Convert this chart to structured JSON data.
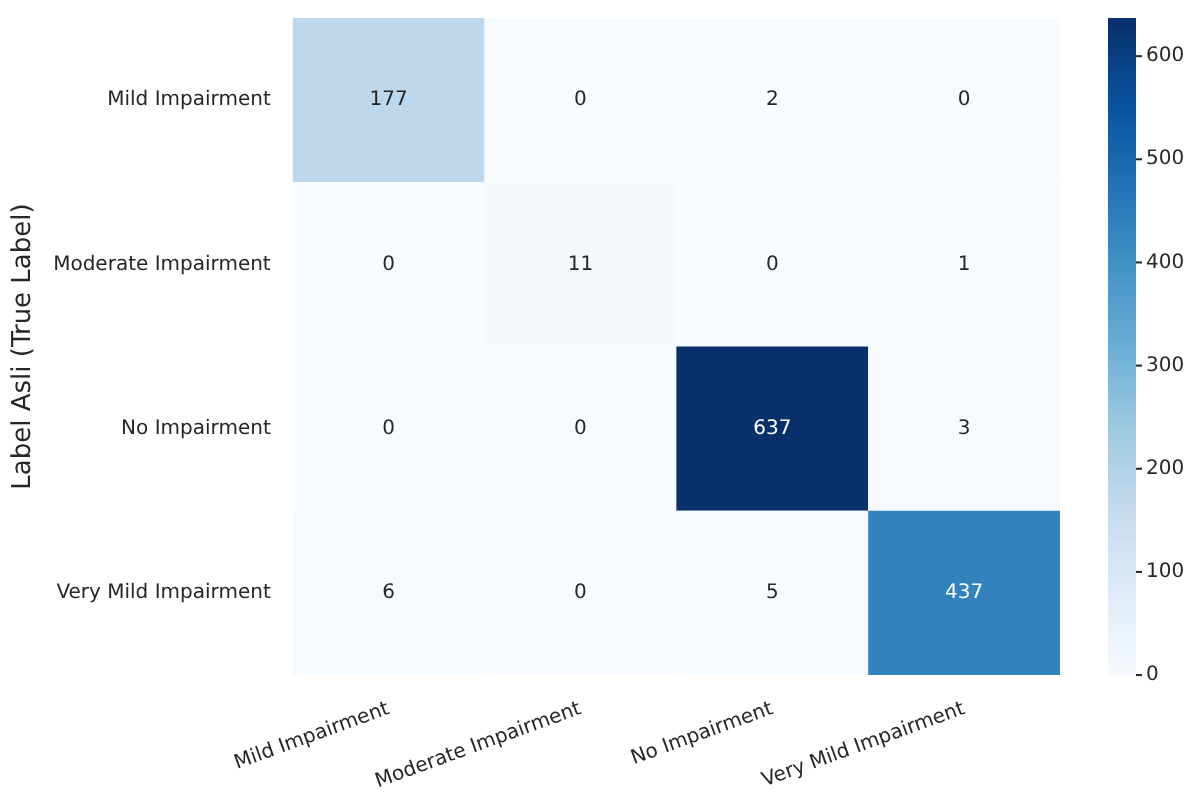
{
  "chart_data": {
    "type": "heatmap",
    "ylabel": "Label Asli (True Label)",
    "categories": [
      "Mild Impairment",
      "Moderate Impairment",
      "No Impairment",
      "Very Mild Impairment"
    ],
    "y_categories": [
      "Mild Impairment",
      "Moderate Impairment",
      "No Impairment",
      "Very Mild Impairment"
    ],
    "cells": [
      [
        177,
        0,
        2,
        0
      ],
      [
        0,
        11,
        0,
        1
      ],
      [
        0,
        0,
        637,
        3
      ],
      [
        6,
        0,
        5,
        437
      ]
    ],
    "clim": [
      0,
      637
    ],
    "cticks": [
      0,
      100,
      200,
      300,
      400,
      500,
      600
    ],
    "data_labels": true
  }
}
